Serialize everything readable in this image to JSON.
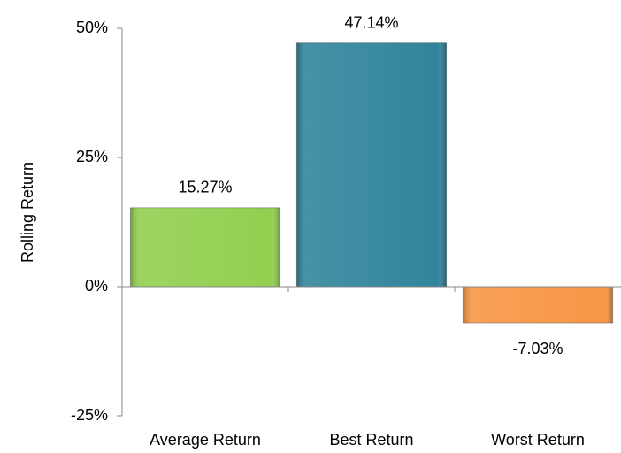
{
  "chart_data": {
    "type": "bar",
    "y_label": "Rolling Return",
    "categories": [
      "Average Return",
      "Best Return",
      "Worst Return"
    ],
    "values": [
      15.27,
      47.14,
      -7.03
    ],
    "value_labels": [
      "15.27%",
      "47.14%",
      "-7.03%"
    ],
    "colors": [
      "#92d050",
      "#31859c",
      "#f79646"
    ],
    "ylim": [
      -25,
      50
    ],
    "yticks": [
      {
        "value": -25,
        "label": "-25%"
      },
      {
        "value": 0,
        "label": "0%"
      },
      {
        "value": 25,
        "label": "25%"
      },
      {
        "value": 50,
        "label": "50%"
      }
    ],
    "grid": false
  }
}
